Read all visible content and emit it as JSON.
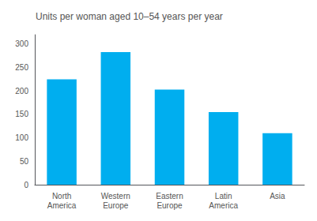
{
  "chart_data": {
    "type": "bar",
    "title": "Units per woman aged 10–54 years per year",
    "categories": [
      "North\nAmerica",
      "Western\nEurope",
      "Eastern\nEurope",
      "Latin\nAmerica",
      "Asia"
    ],
    "values": [
      225,
      283,
      203,
      155,
      110
    ],
    "color": "#00AEEF",
    "ylim": [
      0,
      320
    ],
    "yticks": [
      0,
      50,
      100,
      150,
      200,
      250,
      300
    ],
    "grid": false
  }
}
